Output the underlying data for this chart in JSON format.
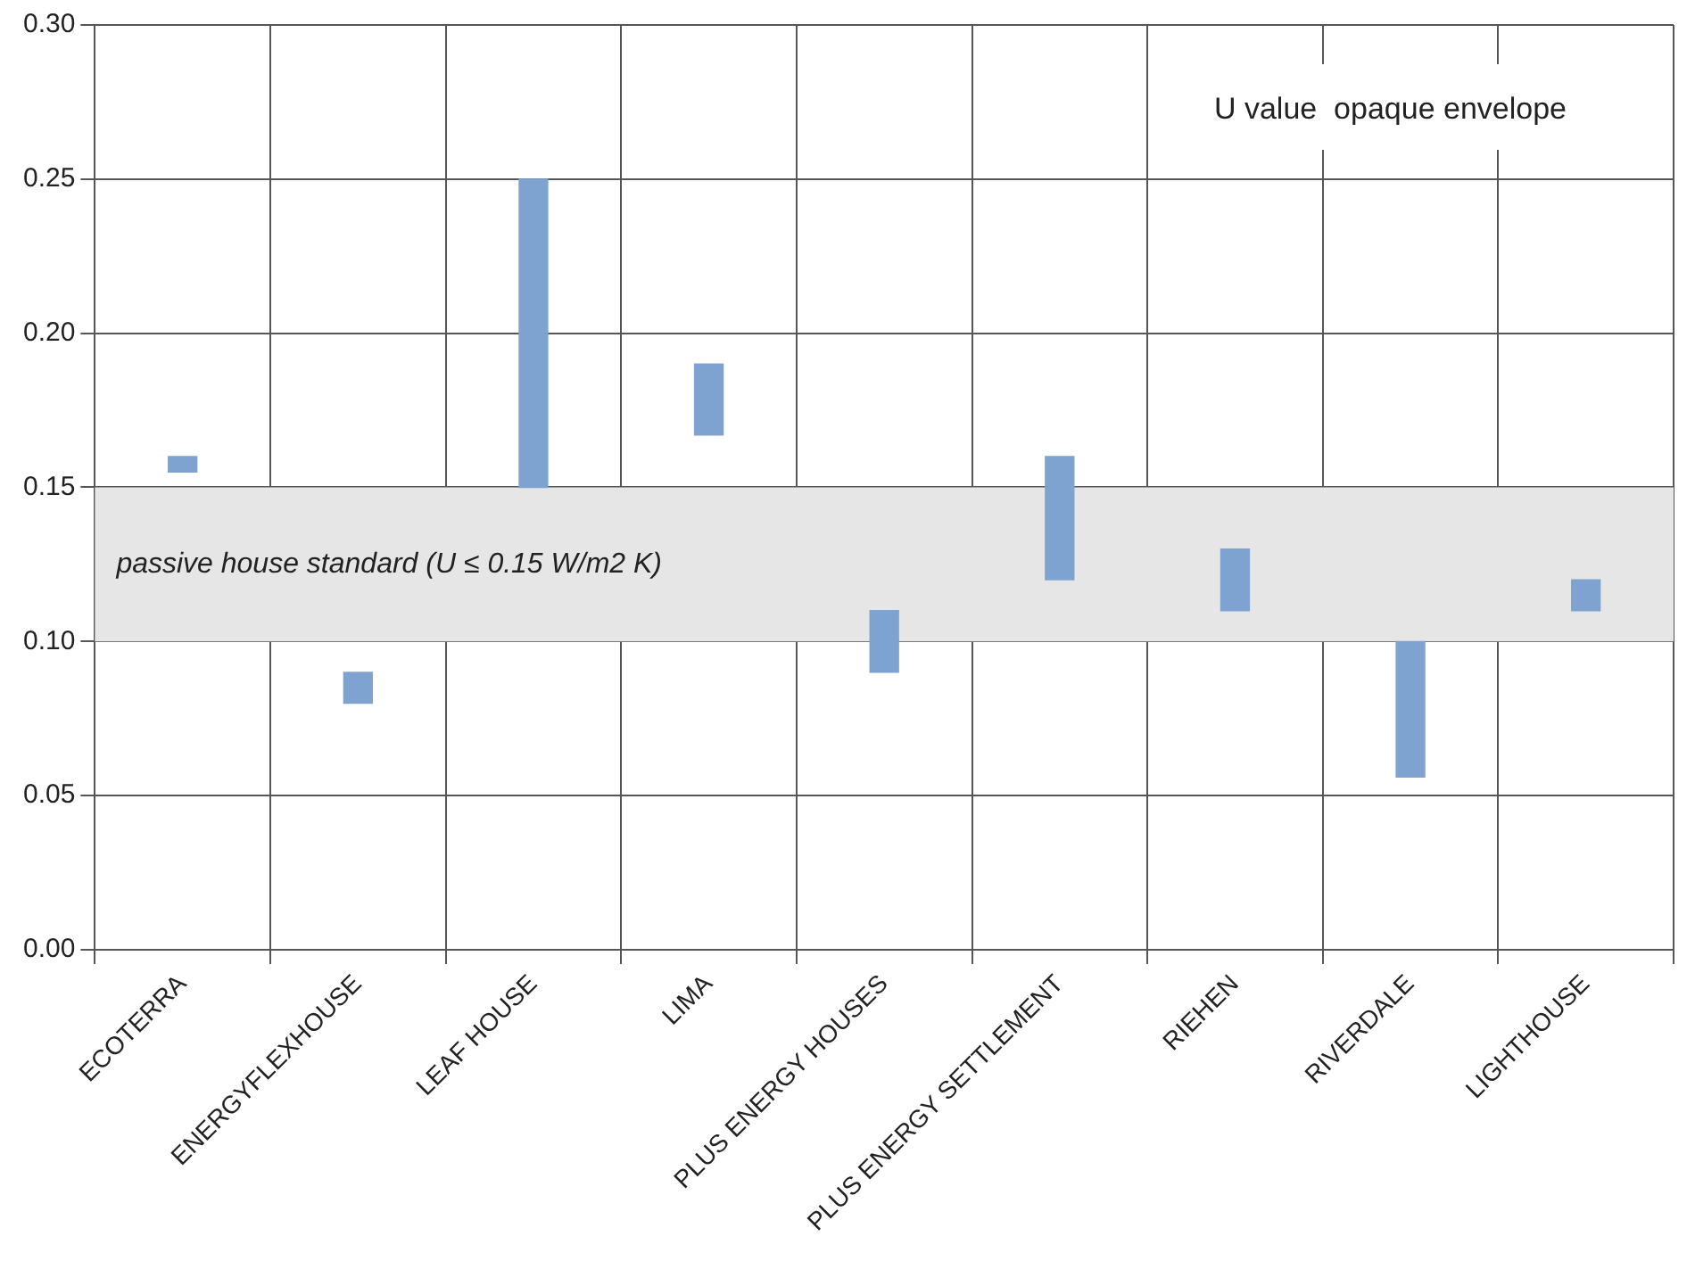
{
  "chart_data": {
    "type": "bar",
    "title": "U value  opaque envelope",
    "categories": [
      "ECOTERRA",
      "ENERGYFLEXHOUSE",
      "LEAF HOUSE",
      "LIMA",
      "PLUS ENERGY HOUSES",
      "PLUS ENERGY SETTLEMENT",
      "RIEHEN",
      "RIVERDALE",
      "LIGHTHOUSE"
    ],
    "base": [
      0.155,
      0.08,
      0.15,
      0.167,
      0.09,
      0.12,
      0.11,
      0.056,
      0.11
    ],
    "values": [
      0.005,
      0.01,
      0.1,
      0.023,
      0.02,
      0.04,
      0.02,
      0.044,
      0.01
    ],
    "color": "#7fa3d1",
    "ylim": [
      0,
      0.3
    ],
    "yticks": [
      {
        "value": 0,
        "label": "0.00"
      },
      {
        "value": 0.05,
        "label": "0.05"
      },
      {
        "value": 0.1,
        "label": "0.10"
      },
      {
        "value": 0.15,
        "label": "0.15"
      },
      {
        "value": 0.2,
        "label": "0.20"
      },
      {
        "value": 0.25,
        "label": "0.25"
      },
      {
        "value": 0.3,
        "label": "0.30"
      }
    ],
    "grid": true,
    "bands": [
      {
        "axis": "y",
        "from": 0.1,
        "to": 0.15,
        "label": "passive house standard (U ≤ 0.15 W/m2 K)",
        "color": "#e6e6e6"
      }
    ]
  }
}
